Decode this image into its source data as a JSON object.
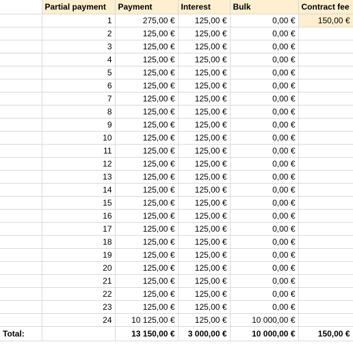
{
  "headers": {
    "col_a": "",
    "partial_payment": "Partial payment",
    "payment": "Payment",
    "interest": "Interest",
    "bulk": "Bulk",
    "contract_fee": "Contract fee"
  },
  "rows": [
    {
      "n": "1",
      "payment": "275,00 €",
      "interest": "125,00 €",
      "bulk": "0,00 €",
      "fee": "150,00 €"
    },
    {
      "n": "2",
      "payment": "125,00 €",
      "interest": "125,00 €",
      "bulk": "0,00 €",
      "fee": ""
    },
    {
      "n": "3",
      "payment": "125,00 €",
      "interest": "125,00 €",
      "bulk": "0,00 €",
      "fee": ""
    },
    {
      "n": "4",
      "payment": "125,00 €",
      "interest": "125,00 €",
      "bulk": "0,00 €",
      "fee": ""
    },
    {
      "n": "5",
      "payment": "125,00 €",
      "interest": "125,00 €",
      "bulk": "0,00 €",
      "fee": ""
    },
    {
      "n": "6",
      "payment": "125,00 €",
      "interest": "125,00 €",
      "bulk": "0,00 €",
      "fee": ""
    },
    {
      "n": "7",
      "payment": "125,00 €",
      "interest": "125,00 €",
      "bulk": "0,00 €",
      "fee": ""
    },
    {
      "n": "8",
      "payment": "125,00 €",
      "interest": "125,00 €",
      "bulk": "0,00 €",
      "fee": ""
    },
    {
      "n": "9",
      "payment": "125,00 €",
      "interest": "125,00 €",
      "bulk": "0,00 €",
      "fee": ""
    },
    {
      "n": "10",
      "payment": "125,00 €",
      "interest": "125,00 €",
      "bulk": "0,00 €",
      "fee": ""
    },
    {
      "n": "11",
      "payment": "125,00 €",
      "interest": "125,00 €",
      "bulk": "0,00 €",
      "fee": ""
    },
    {
      "n": "12",
      "payment": "125,00 €",
      "interest": "125,00 €",
      "bulk": "0,00 €",
      "fee": ""
    },
    {
      "n": "13",
      "payment": "125,00 €",
      "interest": "125,00 €",
      "bulk": "0,00 €",
      "fee": ""
    },
    {
      "n": "14",
      "payment": "125,00 €",
      "interest": "125,00 €",
      "bulk": "0,00 €",
      "fee": ""
    },
    {
      "n": "15",
      "payment": "125,00 €",
      "interest": "125,00 €",
      "bulk": "0,00 €",
      "fee": ""
    },
    {
      "n": "16",
      "payment": "125,00 €",
      "interest": "125,00 €",
      "bulk": "0,00 €",
      "fee": ""
    },
    {
      "n": "17",
      "payment": "125,00 €",
      "interest": "125,00 €",
      "bulk": "0,00 €",
      "fee": ""
    },
    {
      "n": "18",
      "payment": "125,00 €",
      "interest": "125,00 €",
      "bulk": "0,00 €",
      "fee": ""
    },
    {
      "n": "19",
      "payment": "125,00 €",
      "interest": "125,00 €",
      "bulk": "0,00 €",
      "fee": ""
    },
    {
      "n": "20",
      "payment": "125,00 €",
      "interest": "125,00 €",
      "bulk": "0,00 €",
      "fee": ""
    },
    {
      "n": "21",
      "payment": "125,00 €",
      "interest": "125,00 €",
      "bulk": "0,00 €",
      "fee": ""
    },
    {
      "n": "22",
      "payment": "125,00 €",
      "interest": "125,00 €",
      "bulk": "0,00 €",
      "fee": ""
    },
    {
      "n": "23",
      "payment": "125,00 €",
      "interest": "125,00 €",
      "bulk": "0,00 €",
      "fee": ""
    },
    {
      "n": "24",
      "payment": "10 125,00 €",
      "interest": "125,00 €",
      "bulk": "10 000,00 €",
      "fee": ""
    }
  ],
  "total": {
    "label": "Total:",
    "partial_payment": "",
    "payment": "13 150,00 €",
    "interest": "3 000,00 €",
    "bulk": "10 000,00 €",
    "contract_fee": "150,00 €"
  },
  "colors": {
    "header_fill": "#fdefcf",
    "gridline": "#d9d9d9"
  }
}
